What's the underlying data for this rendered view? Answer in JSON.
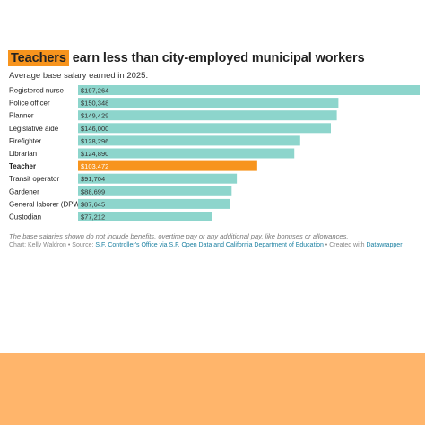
{
  "title": {
    "highlight": "Teachers",
    "rest": " earn less than city-employed municipal workers"
  },
  "subtitle": "Average base salary earned in 2025.",
  "note": "The base salaries shown do not include benefits, overtime pay or any additional pay, like bonuses or allowances.",
  "credits": {
    "chart_by": "Chart: Kelly Waldron",
    "source_prefix": " • Source: ",
    "source_link": "S.F. Controller's Office via S.F. Open Data and California Department of Education",
    "created_prefix": " • Created with ",
    "created_link": "Datawrapper"
  },
  "colors": {
    "bar": "#8dd5cc",
    "highlight_bar": "#f7941d",
    "label": "#222222",
    "value_text": "#333333",
    "highlight_value_text": "#ffffff",
    "footer_band": "#ffb56b"
  },
  "chart_data": {
    "type": "bar",
    "orientation": "horizontal",
    "title": "Teachers earn less than city-employed municipal workers",
    "subtitle": "Average base salary earned in 2025.",
    "xlim": [
      0,
      197264
    ],
    "categories": [
      "Registered nurse",
      "Police officer",
      "Planner",
      "Legislative aide",
      "Firefighter",
      "Librarian",
      "Teacher",
      "Transit operator",
      "Gardener",
      "General laborer (DPW)",
      "Custodian"
    ],
    "values": [
      197264,
      150348,
      149429,
      146000,
      128296,
      124890,
      103472,
      91704,
      88699,
      87645,
      77212
    ],
    "value_labels": [
      "$197,264",
      "$150,348",
      "$149,429",
      "$146,000",
      "$128,296",
      "$124,890",
      "$103,472",
      "$91,704",
      "$88,699",
      "$87,645",
      "$77,212"
    ],
    "highlighted_category": "Teacher"
  }
}
